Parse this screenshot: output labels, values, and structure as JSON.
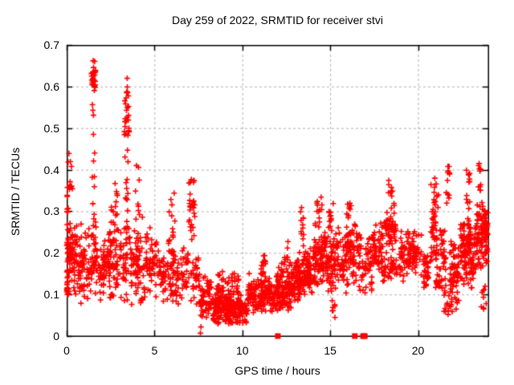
{
  "chart_data": {
    "type": "scatter",
    "title": "Day 259 of 2022, SRMTID for receiver stvi",
    "xlabel": "GPS time / hours",
    "ylabel": "SRMTID / TECUs",
    "xlim": [
      0,
      24
    ],
    "ylim": [
      0,
      0.7
    ],
    "xticks": [
      0,
      5,
      10,
      15,
      20
    ],
    "xtick_labels": [
      "0",
      "5",
      "10",
      "15",
      "20"
    ],
    "yticks": [
      0,
      0.1,
      0.2,
      0.3,
      0.4,
      0.5,
      0.6,
      0.7
    ],
    "ytick_labels": [
      "0",
      "0.1",
      "0.2",
      "0.3",
      "0.4",
      "0.5",
      "0.6",
      "0.7"
    ],
    "grid": true,
    "legend": "none",
    "colors": {
      "marker": "#ff0000",
      "grid": "#b0b0b0",
      "frame": "#000000",
      "text": "#000000",
      "background": "#ffffff"
    },
    "series": [
      {
        "name": "SRMTID",
        "marker": "plus",
        "color": "#ff0000",
        "clusters_format": [
          "x_start_hours",
          "x_end_hours",
          "y_min_TECUs",
          "y_max_TECUs",
          "n_points",
          "bias(u=uniform,m=mid,b=bottom,t=top)"
        ],
        "clusters": [
          [
            0.0,
            0.15,
            0.1,
            0.47,
            45,
            "b"
          ],
          [
            0.0,
            0.5,
            0.1,
            0.3,
            60,
            "m"
          ],
          [
            0.15,
            0.35,
            0.3,
            0.42,
            8,
            "u"
          ],
          [
            0.5,
            1.3,
            0.07,
            0.28,
            70,
            "m"
          ],
          [
            1.4,
            1.65,
            0.58,
            0.67,
            28,
            "m"
          ],
          [
            1.45,
            1.6,
            0.3,
            0.58,
            10,
            "u"
          ],
          [
            1.35,
            1.75,
            0.08,
            0.3,
            45,
            "m"
          ],
          [
            1.8,
            2.4,
            0.08,
            0.25,
            55,
            "m"
          ],
          [
            2.4,
            3.1,
            0.07,
            0.32,
            70,
            "m"
          ],
          [
            2.75,
            2.95,
            0.28,
            0.38,
            8,
            "u"
          ],
          [
            3.25,
            3.55,
            0.42,
            0.635,
            30,
            "m"
          ],
          [
            3.3,
            3.5,
            0.3,
            0.42,
            10,
            "u"
          ],
          [
            3.2,
            3.7,
            0.08,
            0.3,
            45,
            "m"
          ],
          [
            3.9,
            4.35,
            0.28,
            0.42,
            10,
            "u"
          ],
          [
            3.7,
            5.3,
            0.07,
            0.28,
            120,
            "m"
          ],
          [
            5.8,
            6.25,
            0.15,
            0.35,
            25,
            "u"
          ],
          [
            5.3,
            6.5,
            0.07,
            0.22,
            70,
            "m"
          ],
          [
            6.95,
            7.3,
            0.2,
            0.425,
            30,
            "m"
          ],
          [
            6.5,
            7.6,
            0.07,
            0.22,
            60,
            "m"
          ],
          [
            7.58,
            7.66,
            0.005,
            0.03,
            2,
            "u"
          ],
          [
            7.6,
            8.3,
            0.04,
            0.15,
            60,
            "m"
          ],
          [
            8.3,
            10.3,
            0.025,
            0.11,
            230,
            "m"
          ],
          [
            8.5,
            9.8,
            0.1,
            0.155,
            40,
            "u"
          ],
          [
            10.3,
            12.0,
            0.045,
            0.155,
            170,
            "m"
          ],
          [
            11.0,
            11.35,
            0.14,
            0.2,
            15,
            "u"
          ],
          [
            12.0,
            13.0,
            0.055,
            0.18,
            130,
            "m"
          ],
          [
            12.4,
            12.6,
            0.17,
            0.24,
            8,
            "u"
          ],
          [
            13.0,
            14.0,
            0.08,
            0.22,
            130,
            "m"
          ],
          [
            13.25,
            13.5,
            0.2,
            0.31,
            12,
            "u"
          ],
          [
            14.0,
            15.0,
            0.1,
            0.26,
            110,
            "m"
          ],
          [
            14.15,
            14.55,
            0.26,
            0.34,
            14,
            "u"
          ],
          [
            15.0,
            16.0,
            0.1,
            0.27,
            100,
            "m"
          ],
          [
            14.9,
            15.25,
            0.26,
            0.32,
            10,
            "u"
          ],
          [
            15.05,
            15.3,
            0.04,
            0.09,
            8,
            "u"
          ],
          [
            15.9,
            16.2,
            0.27,
            0.32,
            8,
            "u"
          ],
          [
            16.0,
            16.6,
            0.12,
            0.28,
            55,
            "m"
          ],
          [
            16.6,
            17.4,
            0.08,
            0.27,
            60,
            "m"
          ],
          [
            17.4,
            18.0,
            0.15,
            0.28,
            55,
            "m"
          ],
          [
            18.1,
            18.75,
            0.2,
            0.33,
            60,
            "m"
          ],
          [
            18.3,
            18.6,
            0.33,
            0.375,
            8,
            "u"
          ],
          [
            18.0,
            19.0,
            0.13,
            0.2,
            40,
            "m"
          ],
          [
            19.0,
            20.2,
            0.13,
            0.27,
            90,
            "m"
          ],
          [
            20.3,
            20.6,
            0.1,
            0.22,
            30,
            "m"
          ],
          [
            20.7,
            21.05,
            0.15,
            0.38,
            40,
            "m"
          ],
          [
            20.9,
            21.2,
            0.3,
            0.38,
            8,
            "u"
          ],
          [
            21.0,
            21.6,
            0.08,
            0.28,
            55,
            "m"
          ],
          [
            21.6,
            21.8,
            0.3,
            0.425,
            12,
            "m"
          ],
          [
            21.35,
            21.95,
            0.05,
            0.105,
            14,
            "u"
          ],
          [
            21.8,
            22.35,
            0.06,
            0.25,
            65,
            "m"
          ],
          [
            22.4,
            23.0,
            0.12,
            0.3,
            90,
            "m"
          ],
          [
            22.75,
            22.95,
            0.3,
            0.41,
            12,
            "u"
          ],
          [
            23.0,
            23.2,
            0.1,
            0.25,
            25,
            "m"
          ],
          [
            23.2,
            23.7,
            0.15,
            0.35,
            70,
            "m"
          ],
          [
            23.4,
            23.6,
            0.35,
            0.42,
            10,
            "u"
          ],
          [
            23.7,
            23.97,
            0.17,
            0.33,
            55,
            "m"
          ],
          [
            23.5,
            23.9,
            0.06,
            0.13,
            10,
            "u"
          ]
        ]
      },
      {
        "name": "flagged-epochs",
        "marker": "filled-square",
        "color": "#ff0000",
        "points": [
          [
            12.02,
            0
          ],
          [
            16.4,
            0
          ],
          [
            16.87,
            0
          ],
          [
            16.97,
            0
          ]
        ]
      }
    ]
  }
}
